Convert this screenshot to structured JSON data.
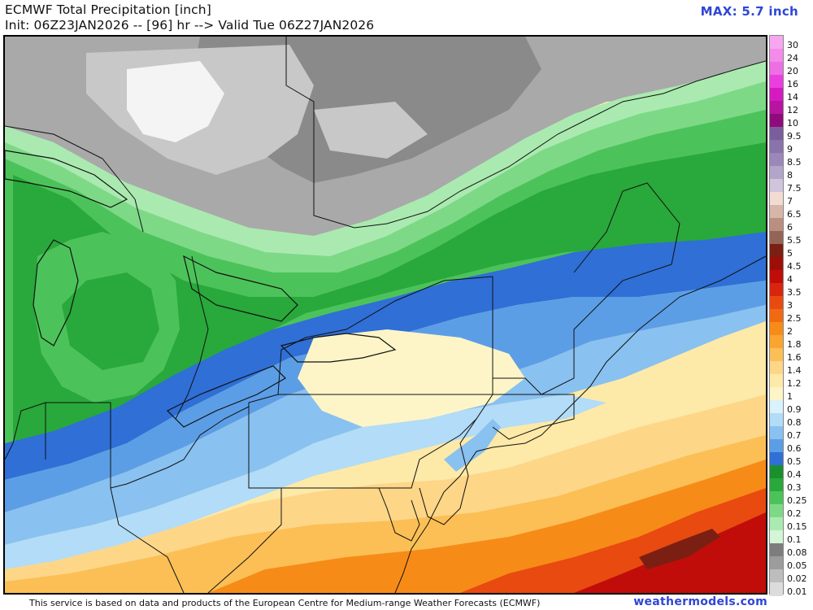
{
  "header": {
    "title": "ECMWF Total Precipitation [inch]",
    "subtitle": "Init: 06Z23JAN2026 -- [96] hr --> Valid Tue 06Z27JAN2026",
    "max_label": "MAX: 5.7 inch"
  },
  "footer": {
    "disclaimer": "This service is based on data and products of the European Centre for Medium-range Weather Forecasts (ECMWF)",
    "site": "weathermodels.com"
  },
  "colorbar": {
    "title_unit": "inch",
    "levels": [
      {
        "label": "30",
        "color": "#f7a6f0"
      },
      {
        "label": "24",
        "color": "#f28be9"
      },
      {
        "label": "20",
        "color": "#ee6ee3"
      },
      {
        "label": "16",
        "color": "#ea3fde"
      },
      {
        "label": "14",
        "color": "#d51ac2"
      },
      {
        "label": "12",
        "color": "#b7149f"
      },
      {
        "label": "10",
        "color": "#8f0b7c"
      },
      {
        "label": "9.5",
        "color": "#7a5e9c"
      },
      {
        "label": "9",
        "color": "#8a72aa"
      },
      {
        "label": "8.5",
        "color": "#9c88b8"
      },
      {
        "label": "8",
        "color": "#b3a4c9"
      },
      {
        "label": "7.5",
        "color": "#cfc5dd"
      },
      {
        "label": "7",
        "color": "#f2dcd2"
      },
      {
        "label": "6.5",
        "color": "#d6b6a9"
      },
      {
        "label": "6",
        "color": "#b9907f"
      },
      {
        "label": "5.5",
        "color": "#946556"
      },
      {
        "label": "5",
        "color": "#7b1f12"
      },
      {
        "label": "4.5",
        "color": "#9e0e08"
      },
      {
        "label": "4",
        "color": "#c10d0a"
      },
      {
        "label": "3.5",
        "color": "#d9250d"
      },
      {
        "label": "3",
        "color": "#e84a10"
      },
      {
        "label": "2.5",
        "color": "#f06a13"
      },
      {
        "label": "2",
        "color": "#f78b18"
      },
      {
        "label": "1.8",
        "color": "#f9a530"
      },
      {
        "label": "1.6",
        "color": "#fbbf55"
      },
      {
        "label": "1.4",
        "color": "#fdd688"
      },
      {
        "label": "1.2",
        "color": "#fde9a8"
      },
      {
        "label": "1",
        "color": "#fdf5c8"
      },
      {
        "label": "0.9",
        "color": "#d9f2fb"
      },
      {
        "label": "0.8",
        "color": "#b2dcf7"
      },
      {
        "label": "0.7",
        "color": "#89c1f0"
      },
      {
        "label": "0.6",
        "color": "#5c9ee6"
      },
      {
        "label": "0.5",
        "color": "#2f6fd6"
      },
      {
        "label": "0.4",
        "color": "#1a8f2d"
      },
      {
        "label": "0.3",
        "color": "#29a83b"
      },
      {
        "label": "0.25",
        "color": "#4cc35a"
      },
      {
        "label": "0.2",
        "color": "#7ed987"
      },
      {
        "label": "0.15",
        "color": "#aaeab0"
      },
      {
        "label": "0.1",
        "color": "#d4f5d6"
      },
      {
        "label": "0.08",
        "color": "#7d7d7d"
      },
      {
        "label": "0.05",
        "color": "#9c9c9c"
      },
      {
        "label": "0.02",
        "color": "#bdbdbd"
      },
      {
        "label": "0.01",
        "color": "#dcdcdc"
      }
    ]
  },
  "map": {
    "colors": {
      "gray_dark": "#8a8a8a",
      "gray_mid": "#a9a9a9",
      "gray_light": "#c8c8c8",
      "white": "#f4f4f4",
      "green_pale": "#aaeab0",
      "green_light": "#7ed987",
      "green": "#4cc35a",
      "green_dark": "#29a83b",
      "blue_dark": "#2f6fd6",
      "blue": "#5c9ee6",
      "blue_light": "#89c1f0",
      "blue_pale": "#b2dcf7",
      "cyan_pale": "#d9f2fb",
      "cream": "#fdf5c8",
      "yellow": "#fde9a8",
      "peach": "#fdd688",
      "orange_light": "#fbbf55",
      "orange": "#f78b18",
      "red_orange": "#e84a10",
      "red": "#c10d0a",
      "red_dark": "#7b1f12",
      "border": "#111111"
    }
  }
}
